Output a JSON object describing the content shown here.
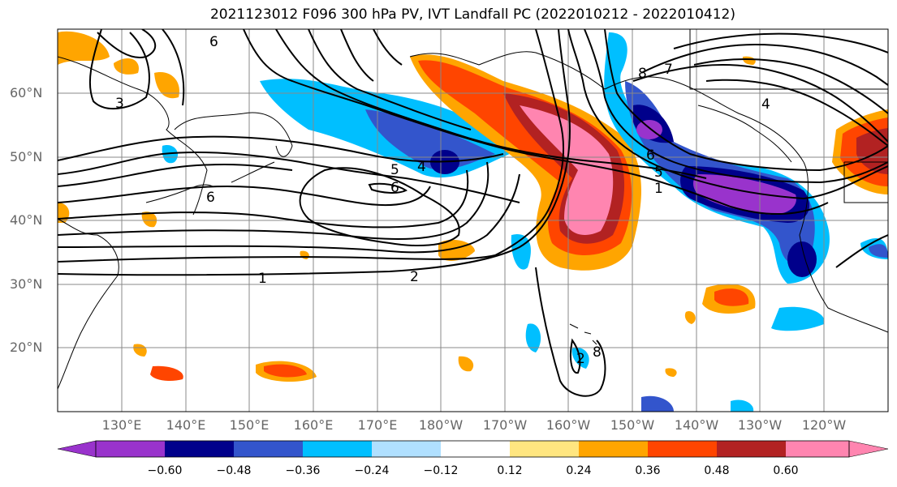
{
  "title": "2021123012 F096 300 hPa PV, IVT Landfall PC (2022010212 - 2022010412)",
  "lat_labels": [
    "60°N",
    "50°N",
    "40°N",
    "30°N",
    "20°N"
  ],
  "lon_labels": [
    "130°E",
    "140°E",
    "150°E",
    "160°E",
    "170°E",
    "180°W",
    "170°W",
    "160°W",
    "150°W",
    "140°W",
    "130°W",
    "120°W"
  ],
  "colorbar": {
    "ticks": [
      "−0.60",
      "−0.48",
      "−0.36",
      "−0.24",
      "−0.12",
      "0.12",
      "0.24",
      "0.36",
      "0.48",
      "0.60"
    ],
    "colors": [
      "#9933cc",
      "#00008b",
      "#3355cc",
      "#00bfff",
      "#b0e0ff",
      "#ffffff",
      "#ffe680",
      "#ffa500",
      "#ff4500",
      "#b22222",
      "#ff85b0"
    ]
  },
  "contour_labels": [
    "6",
    "3",
    "6",
    "5",
    "4",
    "6",
    "1",
    "2",
    "8",
    "7",
    "4",
    "6",
    "5",
    "1",
    "2",
    "8"
  ]
}
